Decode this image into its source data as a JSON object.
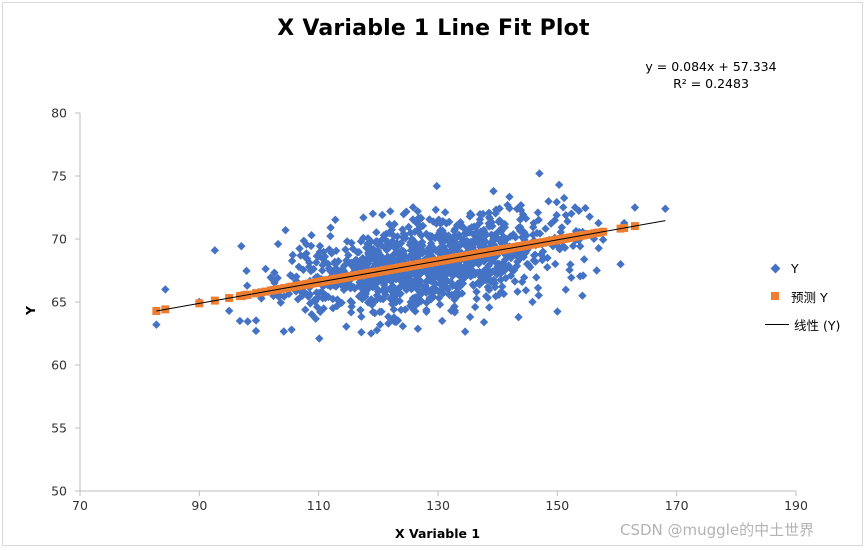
{
  "chart_data": {
    "type": "scatter",
    "title": "X Variable 1 Line Fit  Plot",
    "xlabel": "X Variable 1",
    "ylabel": "Y",
    "xlim": [
      70,
      190
    ],
    "ylim": [
      50,
      80
    ],
    "xticks": [
      70,
      90,
      110,
      130,
      150,
      170,
      190
    ],
    "yticks": [
      50,
      55,
      60,
      65,
      70,
      75,
      80
    ],
    "xtick_labels": [
      "70",
      "90",
      "110",
      "130",
      "150",
      "170",
      "190"
    ],
    "ytick_labels": [
      "50",
      "55",
      "60",
      "65",
      "70",
      "75",
      "80"
    ],
    "grid": false,
    "legend_position": "right",
    "trendline": {
      "type": "linear",
      "slope": 0.084,
      "intercept": 57.334,
      "equation_label": "y = 0.084x + 57.334",
      "r2_label": "R² = 0.2483",
      "x_range": [
        82.8,
        168.1
      ],
      "color": "#000000"
    },
    "series": [
      {
        "name": "Y",
        "marker": "diamond",
        "color": "#4472C4",
        "center": [
          128,
          68
        ],
        "x_sd": 12,
        "y_sd": 2.0,
        "correlation": 0.5,
        "approx_count": 1200,
        "sample_points": [
          [
            82.8,
            63.2
          ],
          [
            84.3,
            66.0
          ],
          [
            90.0,
            65.0
          ],
          [
            92.6,
            69.1
          ],
          [
            95.0,
            64.3
          ],
          [
            96.8,
            63.5
          ],
          [
            99.5,
            62.7
          ],
          [
            103.2,
            69.6
          ],
          [
            108.8,
            70.3
          ],
          [
            110.1,
            62.1
          ],
          [
            112.0,
            70.9
          ],
          [
            117.5,
            71.7
          ],
          [
            120.3,
            63.2
          ],
          [
            122.0,
            72.2
          ],
          [
            126.6,
            72.2
          ],
          [
            129.8,
            74.2
          ],
          [
            130.7,
            63.5
          ],
          [
            139.3,
            73.8
          ],
          [
            143.5,
            63.8
          ],
          [
            147.0,
            75.2
          ],
          [
            150.3,
            74.3
          ],
          [
            151.7,
            71.4
          ],
          [
            154.2,
            65.5
          ],
          [
            156.6,
            67.5
          ],
          [
            160.6,
            68.0
          ],
          [
            163.0,
            72.5
          ],
          [
            168.1,
            72.4
          ]
        ]
      },
      {
        "name": "预测 Y",
        "marker": "square",
        "color": "#ED7D31",
        "x_range": [
          82.8,
          163.0
        ]
      }
    ]
  },
  "legend": {
    "y_label": "Y",
    "pred_label": "预测 Y",
    "line_label": "线性 (Y)"
  },
  "watermark": "CSDN @muggle的中土世界"
}
